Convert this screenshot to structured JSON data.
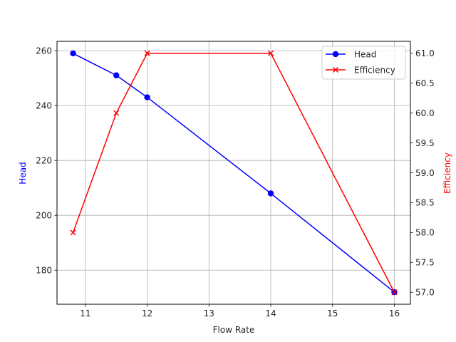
{
  "chart_data": {
    "type": "line",
    "title": "",
    "xlabel": "Flow Rate",
    "ylabel": "Head",
    "ylabel_right": "Efficiency",
    "x": [
      10.8,
      11.5,
      12,
      14,
      16
    ],
    "series": [
      {
        "name": "Head",
        "axis": "left",
        "color": "#0000ff",
        "marker": "circle",
        "values": [
          259,
          251,
          243,
          208,
          172
        ]
      },
      {
        "name": "Efficiency",
        "axis": "right",
        "color": "#ff0000",
        "marker": "x",
        "values": [
          58.0,
          60.0,
          61.0,
          61.0,
          57.0
        ]
      }
    ],
    "xlim": [
      10.54,
      16.26
    ],
    "ylim": [
      167.6,
      263.4
    ],
    "ylim_right": [
      56.8,
      61.2
    ],
    "xticks": [
      "11",
      "12",
      "13",
      "14",
      "15",
      "16"
    ],
    "yticks": [
      "180",
      "200",
      "220",
      "240",
      "260"
    ],
    "yticks_right": [
      "57.0",
      "57.5",
      "58.0",
      "58.5",
      "59.0",
      "59.5",
      "60.0",
      "60.5",
      "61.0"
    ],
    "grid": true,
    "legend_position": "upper right"
  }
}
